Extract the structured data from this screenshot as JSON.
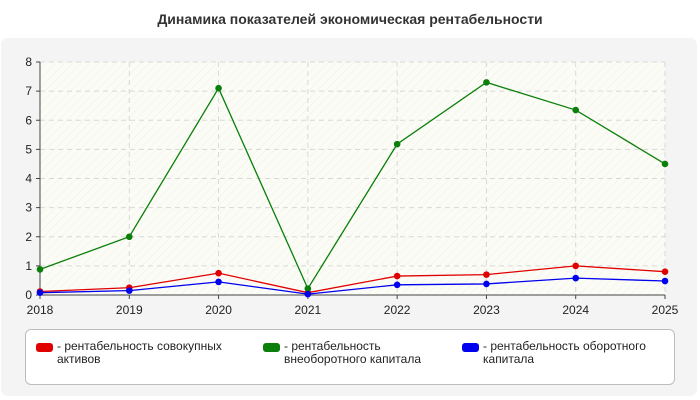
{
  "title": "Динамика показателей экономическая рентабельности",
  "chart_data": {
    "type": "line",
    "title": "Динамика показателей экономическая рентабельности",
    "categories": [
      "2018",
      "2019",
      "2020",
      "2021",
      "2022",
      "2023",
      "2024",
      "2025"
    ],
    "ylim": [
      0,
      8
    ],
    "yticks": [
      "0",
      "1",
      "2",
      "3",
      "4",
      "5",
      "6",
      "7",
      "8"
    ],
    "grid": true,
    "legend_position": "bottom",
    "series": [
      {
        "name": "- рентабельность совокупных активов",
        "color": "#e00000",
        "values": [
          0.12,
          0.25,
          0.75,
          0.08,
          0.65,
          0.7,
          1.0,
          0.8
        ]
      },
      {
        "name": "- рентабельность внеоборотного капитала",
        "color": "#0a7f0a",
        "values": [
          0.88,
          2.0,
          7.1,
          0.22,
          5.18,
          7.3,
          6.35,
          4.5
        ]
      },
      {
        "name": "- рентабельность оборотного капитала",
        "color": "#0000ee",
        "values": [
          0.08,
          0.15,
          0.45,
          0.03,
          0.35,
          0.38,
          0.58,
          0.48
        ]
      }
    ]
  }
}
